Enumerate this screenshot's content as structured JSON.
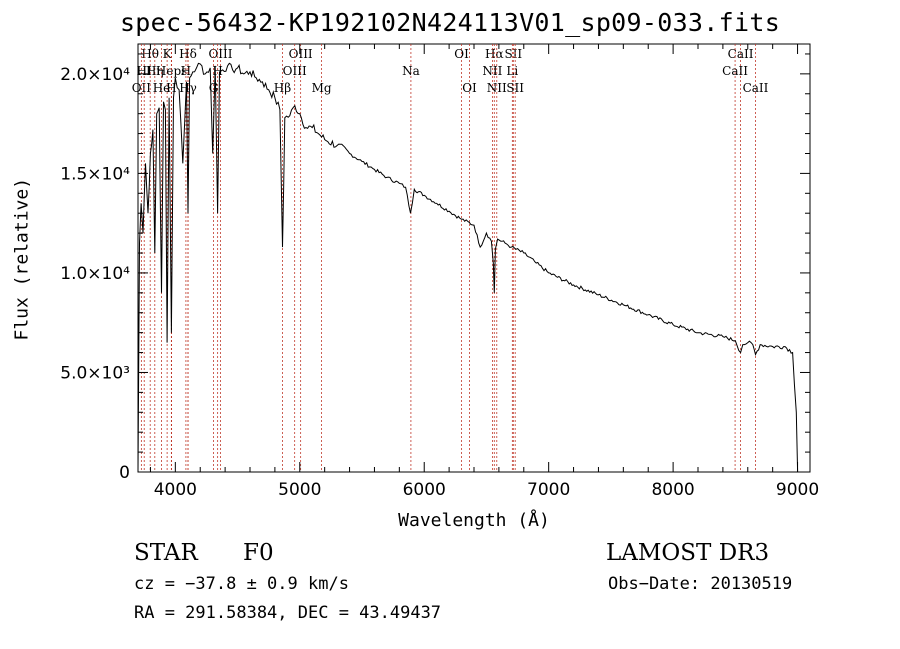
{
  "chart_data": {
    "type": "line",
    "title": "spec-56432-KP192102N424113V01_sp09-033.fits",
    "xlabel": "Wavelength (Å)",
    "ylabel": "Flux (relative)",
    "xlim": [
      3700,
      9100
    ],
    "ylim": [
      0,
      21500
    ],
    "x_ticks": [
      4000,
      5000,
      6000,
      7000,
      8000,
      9000
    ],
    "x_tick_labels": [
      "4000",
      "5000",
      "6000",
      "7000",
      "8000",
      "9000"
    ],
    "y_ticks": [
      0,
      5000,
      10000,
      15000,
      20000
    ],
    "y_tick_labels": [
      "0",
      "5.0×10³",
      "1.0×10⁴",
      "1.5×10⁴",
      "2.0×10⁴"
    ],
    "series": [
      {
        "name": "flux",
        "x": [
          3700,
          3712,
          3725,
          3740,
          3760,
          3780,
          3800,
          3820,
          3835,
          3850,
          3870,
          3889,
          3905,
          3920,
          3934,
          3950,
          3968,
          3985,
          4000,
          4030,
          4060,
          4090,
          4102,
          4115,
          4140,
          4170,
          4200,
          4240,
          4280,
          4300,
          4320,
          4340,
          4355,
          4380,
          4420,
          4460,
          4500,
          4550,
          4600,
          4650,
          4700,
          4750,
          4800,
          4840,
          4861,
          4880,
          4920,
          4960,
          5000,
          5050,
          5100,
          5150,
          5200,
          5300,
          5400,
          5500,
          5600,
          5700,
          5800,
          5850,
          5890,
          5920,
          6000,
          6100,
          6200,
          6300,
          6400,
          6450,
          6500,
          6540,
          6555,
          6563,
          6572,
          6590,
          6650,
          6700,
          6800,
          6900,
          7000,
          7200,
          7400,
          7600,
          7800,
          8000,
          8200,
          8400,
          8500,
          8542,
          8560,
          8600,
          8640,
          8662,
          8700,
          8800,
          8900,
          8960,
          8990,
          9000
        ],
        "y": [
          0,
          11500,
          13500,
          12000,
          15500,
          13000,
          16000,
          17200,
          11000,
          18000,
          18300,
          9000,
          18600,
          18200,
          6500,
          18800,
          7000,
          18800,
          19800,
          19200,
          15500,
          19600,
          13000,
          19800,
          20100,
          20300,
          20500,
          20000,
          20300,
          16000,
          20400,
          13000,
          20100,
          20200,
          20400,
          20200,
          20300,
          20000,
          20100,
          19800,
          19600,
          19200,
          18800,
          18200,
          11300,
          17800,
          17900,
          18400,
          18000,
          17300,
          17300,
          17000,
          16700,
          16400,
          16000,
          15600,
          15200,
          14800,
          14500,
          14300,
          13000,
          14200,
          13900,
          13500,
          13100,
          12700,
          12400,
          11300,
          12000,
          11600,
          10500,
          9000,
          11200,
          11700,
          11500,
          11300,
          11000,
          10500,
          10000,
          9400,
          8900,
          8400,
          7900,
          7400,
          7000,
          6800,
          6600,
          6000,
          6400,
          6500,
          6400,
          5900,
          6400,
          6300,
          6300,
          6000,
          3000,
          0
        ]
      }
    ],
    "lines": [
      {
        "label": "Hθ",
        "wave": 3798,
        "row": 1
      },
      {
        "label": "OII",
        "wave": 3727,
        "row": 3
      },
      {
        "label": "HI",
        "wave": 3750,
        "row": 2
      },
      {
        "label": "Hη",
        "wave": 3835,
        "row": 2
      },
      {
        "label": "K",
        "wave": 3934,
        "row": 1
      },
      {
        "label": "He",
        "wave": 3889,
        "row": 3
      },
      {
        "label": "Heps",
        "wave": 3970,
        "row": 2
      },
      {
        "label": "H",
        "wave": 3968,
        "row": 3
      },
      {
        "label": "Hδ",
        "wave": 4102,
        "row": 1
      },
      {
        "label": "H",
        "wave": 4085,
        "row": 2
      },
      {
        "label": "Hγ",
        "wave": 4102,
        "row": 3
      },
      {
        "label": "OIII",
        "wave": 4363,
        "row": 1
      },
      {
        "label": "H",
        "wave": 4340,
        "row": 2
      },
      {
        "label": "G",
        "wave": 4307,
        "row": 3
      },
      {
        "label": "OIII",
        "wave": 5007,
        "row": 1
      },
      {
        "label": "OIII",
        "wave": 4959,
        "row": 2
      },
      {
        "label": "Hβ",
        "wave": 4861,
        "row": 3
      },
      {
        "label": "Mg",
        "wave": 5175,
        "row": 3
      },
      {
        "label": "Na",
        "wave": 5893,
        "row": 2
      },
      {
        "label": "OI",
        "wave": 6300,
        "row": 1
      },
      {
        "label": "OI",
        "wave": 6364,
        "row": 3
      },
      {
        "label": "Hα",
        "wave": 6563,
        "row": 1
      },
      {
        "label": "NII",
        "wave": 6548,
        "row": 2
      },
      {
        "label": "NII",
        "wave": 6583,
        "row": 3
      },
      {
        "label": "SII",
        "wave": 6716,
        "row": 1
      },
      {
        "label": "Li",
        "wave": 6708,
        "row": 2
      },
      {
        "label": "SII",
        "wave": 6731,
        "row": 3
      },
      {
        "label": "CaII",
        "wave": 8542,
        "row": 1
      },
      {
        "label": "CaII",
        "wave": 8498,
        "row": 2
      },
      {
        "label": "CaII",
        "wave": 8662,
        "row": 3
      }
    ]
  },
  "footer": {
    "object_type": "STAR",
    "subclass": "F0",
    "survey": "LAMOST DR3",
    "cz": "cz = −37.8 ± 0.9 km/s",
    "obs_date": "Obs−Date: 20130519",
    "radec": "RA = 291.58384, DEC =  43.49437"
  },
  "colors": {
    "line": "#000000",
    "marker": "#c0392b",
    "background": "#ffffff"
  }
}
